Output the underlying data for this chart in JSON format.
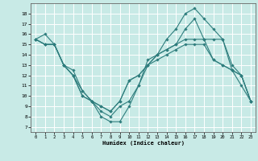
{
  "xlabel": "Humidex (Indice chaleur)",
  "bg_color": "#c8eae6",
  "grid_color": "#ffffff",
  "line_color": "#2e7d7d",
  "xlim": [
    -0.5,
    23.5
  ],
  "ylim": [
    6.5,
    19.0
  ],
  "xticks": [
    0,
    1,
    2,
    3,
    4,
    5,
    6,
    7,
    8,
    9,
    10,
    11,
    12,
    13,
    14,
    15,
    16,
    17,
    18,
    19,
    20,
    21,
    22,
    23
  ],
  "yticks": [
    7,
    8,
    9,
    10,
    11,
    12,
    13,
    14,
    15,
    16,
    17,
    18
  ],
  "lines": [
    {
      "x": [
        0,
        1,
        2,
        3,
        4,
        5,
        6,
        7,
        8,
        9,
        10,
        11,
        12,
        13,
        14,
        15,
        16,
        17,
        18,
        19,
        20,
        21,
        22,
        23
      ],
      "y": [
        15.5,
        16.0,
        15.0,
        13.0,
        12.0,
        10.0,
        9.5,
        8.0,
        7.5,
        7.5,
        9.0,
        11.0,
        13.5,
        14.0,
        15.5,
        16.5,
        18.0,
        18.5,
        17.5,
        16.5,
        15.5,
        12.5,
        11.0,
        9.5
      ]
    },
    {
      "x": [
        0,
        1,
        2,
        3,
        4,
        5,
        6,
        7,
        8,
        9,
        10,
        11,
        12,
        13,
        14,
        15,
        16,
        17,
        18,
        19,
        20,
        21,
        22,
        23
      ],
      "y": [
        15.5,
        15.0,
        15.0,
        13.0,
        12.0,
        10.0,
        9.5,
        8.5,
        8.0,
        9.0,
        9.5,
        11.0,
        13.0,
        14.0,
        14.5,
        15.0,
        16.5,
        17.5,
        15.5,
        15.5,
        15.5,
        13.0,
        12.0,
        9.5
      ]
    },
    {
      "x": [
        0,
        1,
        2,
        3,
        4,
        5,
        6,
        7,
        8,
        9,
        10,
        11,
        12,
        13,
        14,
        15,
        16,
        17,
        18,
        19,
        20,
        21,
        22,
        23
      ],
      "y": [
        15.5,
        15.0,
        15.0,
        13.0,
        12.5,
        10.5,
        9.5,
        9.0,
        8.5,
        9.5,
        11.5,
        12.0,
        13.0,
        14.0,
        14.5,
        15.0,
        15.5,
        15.5,
        15.5,
        13.5,
        13.0,
        12.5,
        12.0,
        9.5
      ]
    },
    {
      "x": [
        0,
        1,
        2,
        3,
        4,
        5,
        6,
        7,
        8,
        9,
        10,
        11,
        12,
        13,
        14,
        15,
        16,
        17,
        18,
        19,
        20,
        21,
        22,
        23
      ],
      "y": [
        15.5,
        15.0,
        15.0,
        13.0,
        12.0,
        10.5,
        9.5,
        9.0,
        8.5,
        9.5,
        11.5,
        12.0,
        13.0,
        13.5,
        14.0,
        14.5,
        15.0,
        15.0,
        15.0,
        13.5,
        13.0,
        12.5,
        12.0,
        9.5
      ]
    }
  ]
}
